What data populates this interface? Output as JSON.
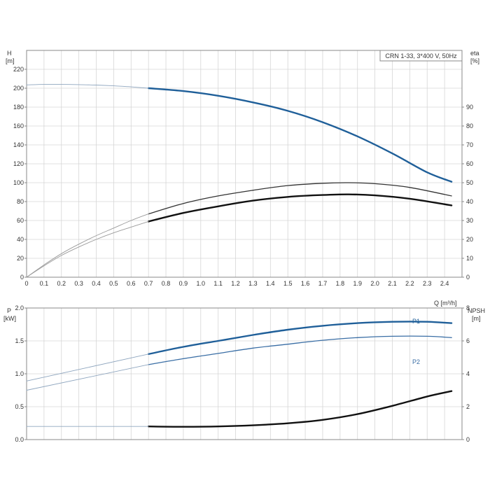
{
  "model_label": "CRN 1-33, 3*400 V, 50Hz",
  "chart_data": [
    {
      "type": "line",
      "panel": "top",
      "y_left_label": [
        "H",
        "[m]"
      ],
      "y_right_label": [
        "eta",
        "[%]"
      ],
      "x_label": "Q [m³/h]",
      "xlim": [
        0,
        2.5
      ],
      "ylim_left": [
        0,
        240
      ],
      "ylim_right": [
        0,
        120
      ],
      "x_ticks": [
        0,
        0.1,
        0.2,
        0.3,
        0.4,
        0.5,
        0.6,
        0.7,
        0.8,
        0.9,
        1.0,
        1.1,
        1.2,
        1.3,
        1.4,
        1.5,
        1.6,
        1.7,
        1.8,
        1.9,
        2.0,
        2.1,
        2.2,
        2.3,
        2.4
      ],
      "x_tick_labels": [
        "0",
        "0.1",
        "0.2",
        "0.3",
        "0.4",
        "0.5",
        "0.6",
        "0.7",
        "0.8",
        "0.9",
        "1.0",
        "1.1",
        "1.2",
        "1.3",
        "1.4",
        "1.5",
        "1.6",
        "1.7",
        "1.8",
        "1.9",
        "2.0",
        "2.1",
        "2.2",
        "2.3",
        "2.4"
      ],
      "y_left_ticks": [
        "0",
        "20",
        "40",
        "60",
        "80",
        "100",
        "120",
        "140",
        "160",
        "180",
        "200",
        "220"
      ],
      "y_right_ticks": [
        "0",
        "10",
        "20",
        "30",
        "40",
        "50",
        "60",
        "70",
        "80",
        "90"
      ],
      "grid": true,
      "series": [
        {
          "axis": "left",
          "color": "#1f5f99",
          "width": 2.4,
          "x": [
            0.7,
            0.9,
            1.1,
            1.3,
            1.5,
            1.7,
            1.9,
            2.1,
            2.3,
            2.44
          ],
          "y": [
            200,
            197,
            192,
            185,
            176,
            164,
            149,
            131,
            111,
            101
          ]
        },
        {
          "axis": "left",
          "color": "#8fa6bf",
          "width": 0.9,
          "x": [
            0,
            0.1,
            0.2,
            0.3,
            0.4,
            0.5,
            0.6,
            0.7
          ],
          "y": [
            203.5,
            204,
            204,
            203.8,
            203.3,
            202.5,
            201.4,
            200
          ]
        },
        {
          "axis": "right",
          "color": "#333333",
          "width": 1.3,
          "x": [
            0.7,
            0.9,
            1.1,
            1.3,
            1.5,
            1.7,
            1.85,
            2.0,
            2.2,
            2.44
          ],
          "y": [
            33.5,
            39,
            43,
            46,
            48.5,
            49.7,
            50,
            49.5,
            47.5,
            43
          ]
        },
        {
          "axis": "right",
          "color": "#9a9a9a",
          "width": 0.9,
          "x": [
            0,
            0.1,
            0.2,
            0.3,
            0.4,
            0.5,
            0.6,
            0.7
          ],
          "y": [
            0,
            6.5,
            12.5,
            17.5,
            22,
            26,
            30,
            33.5
          ]
        },
        {
          "axis": "right",
          "color": "#111111",
          "width": 2.4,
          "x": [
            0.7,
            0.9,
            1.1,
            1.3,
            1.5,
            1.7,
            1.85,
            2.0,
            2.2,
            2.44
          ],
          "y": [
            29.5,
            34,
            37.5,
            40.5,
            42.5,
            43.5,
            43.8,
            43.3,
            41.5,
            38
          ]
        },
        {
          "axis": "right",
          "color": "#9a9a9a",
          "width": 0.9,
          "x": [
            0,
            0.1,
            0.2,
            0.3,
            0.4,
            0.5,
            0.6,
            0.7
          ],
          "y": [
            0,
            6,
            11.5,
            16,
            20,
            23.5,
            26.5,
            29.5
          ]
        }
      ]
    },
    {
      "type": "line",
      "panel": "bottom",
      "y_left_label": [
        "P",
        "[kW]"
      ],
      "y_right_label": [
        "NPSH",
        "[m]"
      ],
      "xlim": [
        0,
        2.5
      ],
      "ylim_left": [
        0,
        2.0
      ],
      "ylim_right": [
        0,
        8
      ],
      "y_left_ticks": [
        "0.0",
        "0.5",
        "1.0",
        "1.5",
        "2.0"
      ],
      "y_right_ticks": [
        "0",
        "2",
        "4",
        "6",
        "8"
      ],
      "grid": true,
      "series": [
        {
          "name": "P1",
          "axis": "left",
          "color": "#1f5f99",
          "width": 2.4,
          "x": [
            0.7,
            0.9,
            1.1,
            1.3,
            1.5,
            1.7,
            1.9,
            2.1,
            2.3,
            2.44
          ],
          "y": [
            1.3,
            1.41,
            1.5,
            1.59,
            1.67,
            1.73,
            1.77,
            1.79,
            1.79,
            1.77
          ]
        },
        {
          "axis": "left",
          "color": "#8fa6bf",
          "width": 0.9,
          "x": [
            0,
            0.7
          ],
          "y": [
            0.89,
            1.3
          ]
        },
        {
          "name": "P2",
          "axis": "left",
          "color": "#3a6ea5",
          "width": 1.3,
          "x": [
            0.7,
            0.9,
            1.1,
            1.3,
            1.5,
            1.7,
            1.9,
            2.1,
            2.3,
            2.44
          ],
          "y": [
            1.14,
            1.23,
            1.31,
            1.39,
            1.45,
            1.51,
            1.55,
            1.57,
            1.57,
            1.55
          ]
        },
        {
          "axis": "left",
          "color": "#8fa6bf",
          "width": 0.9,
          "x": [
            0,
            0.7
          ],
          "y": [
            0.75,
            1.14
          ]
        },
        {
          "axis": "right",
          "color": "#111111",
          "width": 2.4,
          "x": [
            0.7,
            0.9,
            1.1,
            1.3,
            1.5,
            1.7,
            1.9,
            2.1,
            2.3,
            2.44
          ],
          "y": [
            0.8,
            0.78,
            0.8,
            0.87,
            0.99,
            1.2,
            1.55,
            2.05,
            2.62,
            2.95
          ]
        },
        {
          "axis": "right",
          "color": "#8fa6bf",
          "width": 0.9,
          "x": [
            0,
            0.7
          ],
          "y": [
            0.8,
            0.8
          ]
        }
      ]
    }
  ]
}
